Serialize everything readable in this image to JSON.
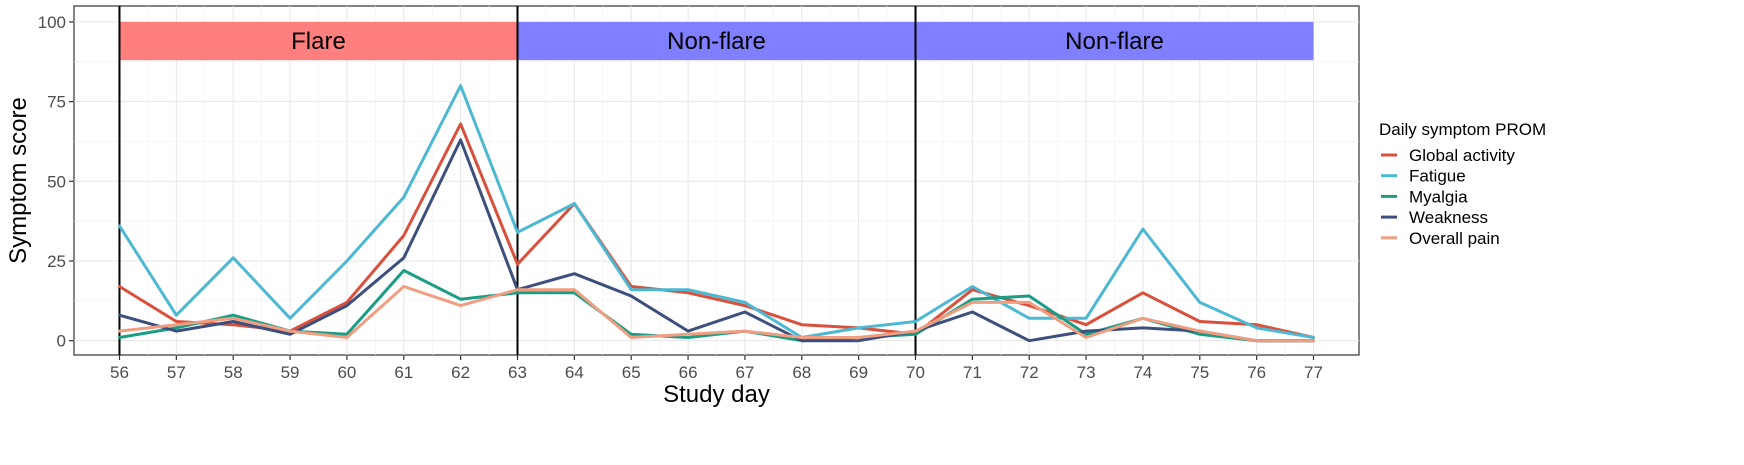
{
  "chart_data": {
    "type": "line",
    "title": "",
    "xlabel": "Study day",
    "ylabel": "Symptom score",
    "xlim": [
      55.2,
      77.8
    ],
    "ylim": [
      -4.5,
      105
    ],
    "x_ticks": [
      56,
      57,
      58,
      59,
      60,
      61,
      62,
      63,
      64,
      65,
      66,
      67,
      68,
      69,
      70,
      71,
      72,
      73,
      74,
      75,
      76,
      77
    ],
    "y_ticks": [
      0,
      25,
      50,
      75,
      100
    ],
    "grid": true,
    "legend": {
      "title": "Daily symptom PROM",
      "position": "right"
    },
    "periods": [
      {
        "label": "Flare",
        "start": 56,
        "end": 63,
        "y_from": 88,
        "y_to": 100,
        "color": "#FF7F7F"
      },
      {
        "label": "Non-flare",
        "start": 63,
        "end": 70,
        "y_from": 88,
        "y_to": 100,
        "color": "#7F7FFF"
      },
      {
        "label": "Non-flare",
        "start": 70,
        "end": 77,
        "y_from": 88,
        "y_to": 100,
        "color": "#7F7FFF"
      }
    ],
    "vlines": [
      56,
      63,
      70
    ],
    "x": [
      56,
      57,
      58,
      59,
      60,
      61,
      62,
      63,
      64,
      65,
      66,
      67,
      68,
      69,
      70,
      71,
      72,
      73,
      74,
      75,
      76,
      77
    ],
    "series": [
      {
        "name": "Global activity",
        "color": "#D9503C",
        "values": [
          17,
          6,
          5,
          3,
          12,
          33,
          68,
          24,
          43,
          17,
          15,
          11,
          5,
          4,
          2,
          16,
          11,
          5,
          15,
          6,
          5,
          1
        ]
      },
      {
        "name": "Fatigue",
        "color": "#4DB8D3",
        "values": [
          36,
          8,
          26,
          7,
          25,
          45,
          80,
          34,
          43,
          16,
          16,
          12,
          1,
          4,
          6,
          17,
          7,
          7,
          35,
          12,
          4,
          1
        ]
      },
      {
        "name": "Myalgia",
        "color": "#1A9E83",
        "values": [
          1,
          4,
          8,
          3,
          2,
          22,
          13,
          15,
          15,
          2,
          1,
          3,
          0,
          1,
          2,
          13,
          14,
          2,
          7,
          2,
          0,
          0
        ]
      },
      {
        "name": "Weakness",
        "color": "#3C4F7E",
        "values": [
          8,
          3,
          6,
          2,
          11,
          26,
          63,
          16,
          21,
          14,
          3,
          9,
          0,
          0,
          3,
          9,
          0,
          3,
          4,
          3,
          0,
          0
        ]
      },
      {
        "name": "Overall pain",
        "color": "#F09E82",
        "values": [
          3,
          5,
          7,
          3,
          1,
          17,
          11,
          16,
          16,
          1,
          2,
          3,
          1,
          1,
          3,
          12,
          12,
          1,
          7,
          3,
          0,
          0
        ]
      }
    ]
  }
}
